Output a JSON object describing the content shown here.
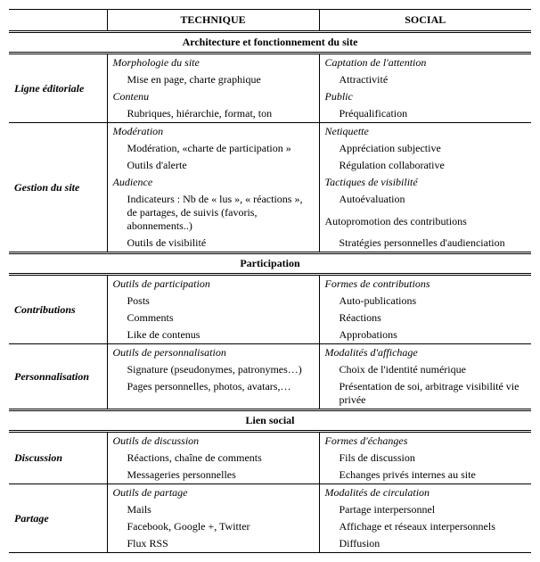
{
  "headers": {
    "technique": "TECHNIQUE",
    "social": "SOCIAL"
  },
  "sections": {
    "arch": "Architecture et fonctionnement du site",
    "participation": "Participation",
    "lien": "Lien social"
  },
  "rows": {
    "ligne": {
      "label": "Ligne éditoriale"
    },
    "gestion": {
      "label": "Gestion du site"
    },
    "contrib": {
      "label": "Contributions"
    },
    "perso": {
      "label": "Personnalisation"
    },
    "discussion": {
      "label": "Discussion"
    },
    "partage": {
      "label": "Partage"
    }
  },
  "tech": {
    "morpho": "Morphologie du site",
    "morpho_item": "Mise en page, charte graphique",
    "contenu": "Contenu",
    "contenu_item": "Rubriques, hiérarchie, format, ton",
    "moderation": "Modération",
    "moderation_item1": "Modération, «charte de participation »",
    "moderation_item2": "Outils d'alerte",
    "audience": "Audience",
    "audience_item1": "Indicateurs : Nb de « lus », « réactions », de partages, de suivis (favoris, abonnements..)",
    "audience_item2": "Outils de visibilité",
    "outils_part": "Outils de participation",
    "outils_part_i1": "Posts",
    "outils_part_i2": "Comments",
    "outils_part_i3": "Like de contenus",
    "outils_perso": "Outils de personnalisation",
    "outils_perso_i1": "Signature (pseudonymes, patronymes…)",
    "outils_perso_i2": "Pages personnelles, photos, avatars,…",
    "outils_disc": "Outils de discussion",
    "outils_disc_i1": "Réactions, chaîne de comments",
    "outils_disc_i2": "Messageries personnelles",
    "outils_partage": "Outils de partage",
    "outils_partage_i1": "Mails",
    "outils_partage_i2": "Facebook, Google +, Twitter",
    "outils_partage_i3": "Flux RSS"
  },
  "social": {
    "captation": "Captation de l'attention",
    "captation_item": "Attractivité",
    "public": "Public",
    "public_item": "Préqualification",
    "netiquette": "Netiquette",
    "netiquette_i1": "Appréciation subjective",
    "netiquette_i2": "Régulation collaborative",
    "tactiques": "Tactiques de visibilité",
    "tactiques_i1": "Autoévaluation",
    "tactiques_i2": "Autopromotion  des contributions",
    "tactiques_i3": "Stratégies personnelles d'audienciation",
    "formes_contrib": "Formes de contributions",
    "formes_contrib_i1": "Auto-publications",
    "formes_contrib_i2": "Réactions",
    "formes_contrib_i3": "Approbations",
    "modalites_aff": "Modalités d'affichage",
    "modalites_aff_i1": "Choix de l'identité numérique",
    "modalites_aff_i2": "Présentation de soi, arbitrage visibilité vie privée",
    "formes_ech": "Formes d'échanges",
    "formes_ech_i1": "Fils de discussion",
    "formes_ech_i2": "Echanges privés internes au site",
    "modalites_circ": "Modalités de circulation",
    "modalites_circ_i1": "Partage interpersonnel",
    "modalites_circ_i2": "Affichage et réseaux interpersonnels",
    "modalites_circ_i3": "Diffusion"
  }
}
